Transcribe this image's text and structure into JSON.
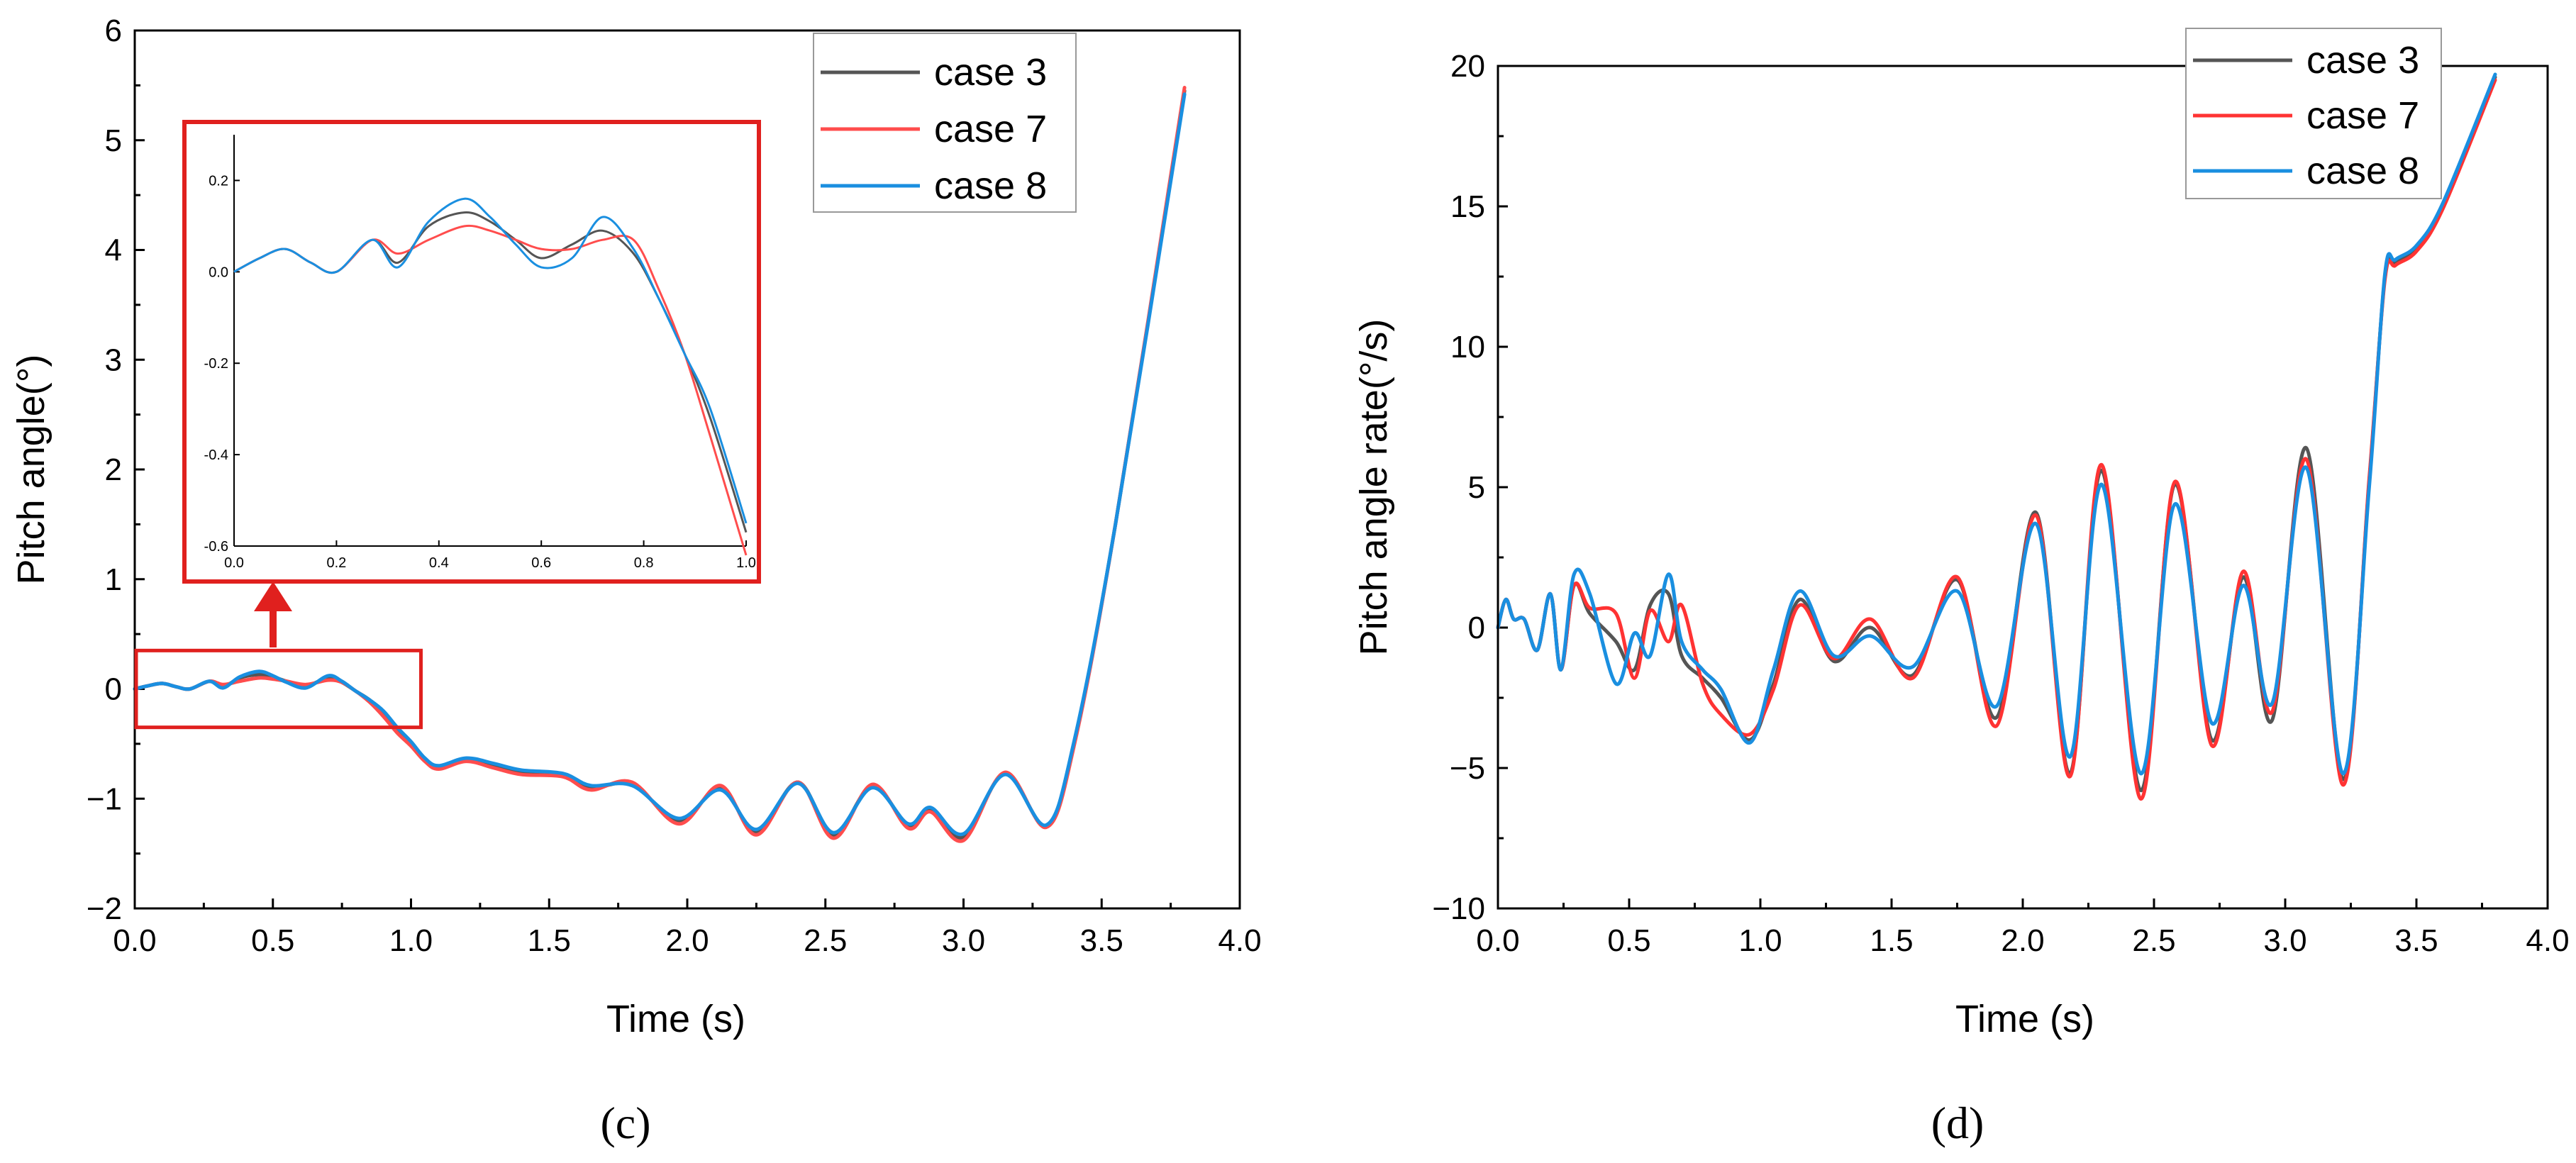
{
  "chart_data": [
    {
      "type": "line",
      "panel_label": "(c)",
      "xlabel": "Time (s)",
      "ylabel": "Pitch angle(°)",
      "xlim": [
        0,
        4
      ],
      "ylim": [
        -2,
        6
      ],
      "xticks": [
        0.0,
        0.5,
        1.0,
        1.5,
        2.0,
        2.5,
        3.0,
        3.5,
        4.0
      ],
      "xtick_labels": [
        "0.0",
        "0.5",
        "1.0",
        "1.5",
        "2.0",
        "2.5",
        "3.0",
        "3.5",
        "4.0"
      ],
      "yticks": [
        -2,
        -1,
        0,
        1,
        2,
        3,
        4,
        5,
        6
      ],
      "ytick_labels": [
        "−2",
        "−1",
        "0",
        "1",
        "2",
        "3",
        "4",
        "5",
        "6"
      ],
      "legend": [
        "case 3",
        "case 7",
        "case 8"
      ],
      "legend_position": "top-right",
      "series": [
        {
          "name": "case 3",
          "color": "#555555",
          "x": [
            0,
            0.05,
            0.1,
            0.15,
            0.2,
            0.27,
            0.32,
            0.38,
            0.45,
            0.5,
            0.55,
            0.62,
            0.7,
            0.75,
            0.8,
            0.85,
            0.9,
            0.95,
            1.0,
            1.05,
            1.1,
            1.2,
            1.3,
            1.4,
            1.55,
            1.65,
            1.8,
            1.97,
            2.12,
            2.25,
            2.4,
            2.53,
            2.67,
            2.8,
            2.88,
            3.0,
            3.15,
            3.3,
            3.4,
            3.55,
            3.8
          ],
          "y": [
            0,
            0.03,
            0.05,
            0.02,
            0,
            0.07,
            0.02,
            0.1,
            0.13,
            0.11,
            0.07,
            0.03,
            0.1,
            0.06,
            -0.02,
            -0.1,
            -0.22,
            -0.37,
            -0.5,
            -0.65,
            -0.72,
            -0.65,
            -0.7,
            -0.76,
            -0.78,
            -0.9,
            -0.87,
            -1.2,
            -0.9,
            -1.3,
            -0.85,
            -1.33,
            -0.88,
            -1.25,
            -1.1,
            -1.35,
            -0.77,
            -1.25,
            -0.5,
            1.5,
            5.45
          ]
        },
        {
          "name": "case 7",
          "color": "#ff4d4d",
          "x": [
            0,
            0.05,
            0.1,
            0.15,
            0.2,
            0.27,
            0.32,
            0.38,
            0.45,
            0.5,
            0.55,
            0.62,
            0.7,
            0.75,
            0.8,
            0.85,
            0.9,
            0.95,
            1.0,
            1.05,
            1.1,
            1.2,
            1.3,
            1.4,
            1.55,
            1.65,
            1.8,
            1.97,
            2.12,
            2.25,
            2.4,
            2.53,
            2.67,
            2.8,
            2.88,
            3.0,
            3.15,
            3.3,
            3.4,
            3.55,
            3.8
          ],
          "y": [
            0,
            0.03,
            0.05,
            0.02,
            0,
            0.07,
            0.04,
            0.07,
            0.1,
            0.09,
            0.07,
            0.04,
            0.08,
            0.06,
            -0.02,
            -0.12,
            -0.25,
            -0.4,
            -0.52,
            -0.66,
            -0.73,
            -0.66,
            -0.72,
            -0.78,
            -0.8,
            -0.92,
            -0.85,
            -1.23,
            -0.88,
            -1.33,
            -0.85,
            -1.36,
            -0.87,
            -1.27,
            -1.12,
            -1.38,
            -0.76,
            -1.26,
            -0.52,
            1.5,
            5.48
          ]
        },
        {
          "name": "case 8",
          "color": "#1a8fe0",
          "x": [
            0,
            0.05,
            0.1,
            0.15,
            0.2,
            0.27,
            0.32,
            0.38,
            0.45,
            0.5,
            0.55,
            0.62,
            0.7,
            0.75,
            0.8,
            0.85,
            0.9,
            0.95,
            1.0,
            1.05,
            1.1,
            1.2,
            1.3,
            1.4,
            1.55,
            1.65,
            1.8,
            1.97,
            2.12,
            2.25,
            2.4,
            2.53,
            2.67,
            2.8,
            2.88,
            3.0,
            3.15,
            3.3,
            3.4,
            3.55,
            3.8
          ],
          "y": [
            0,
            0.03,
            0.05,
            0.02,
            0,
            0.07,
            0.01,
            0.11,
            0.16,
            0.12,
            0.06,
            0.01,
            0.12,
            0.07,
            -0.02,
            -0.1,
            -0.2,
            -0.35,
            -0.48,
            -0.63,
            -0.7,
            -0.63,
            -0.68,
            -0.74,
            -0.77,
            -0.88,
            -0.88,
            -1.18,
            -0.92,
            -1.28,
            -0.86,
            -1.31,
            -0.9,
            -1.23,
            -1.08,
            -1.32,
            -0.78,
            -1.24,
            -0.48,
            1.5,
            5.42
          ]
        }
      ],
      "inset": {
        "xlim": [
          0,
          1
        ],
        "ylim": [
          -0.6,
          0.3
        ],
        "xticks": [
          0.0,
          0.2,
          0.4,
          0.6,
          0.8,
          1.0
        ],
        "xtick_labels": [
          "0.0",
          "0.2",
          "0.4",
          "0.6",
          "0.8",
          "1.0"
        ],
        "yticks": [
          -0.6,
          -0.4,
          -0.2,
          0.0,
          0.2
        ],
        "ytick_labels": [
          "-0.6",
          "-0.4",
          "-0.2",
          "0.0",
          "0.2"
        ],
        "zoom_region": {
          "x": [
            0,
            1
          ],
          "y": [
            -0.35,
            0.35
          ]
        },
        "series": [
          {
            "name": "case 3",
            "color": "#555555",
            "x": [
              0,
              0.05,
              0.1,
              0.15,
              0.2,
              0.27,
              0.32,
              0.38,
              0.45,
              0.5,
              0.55,
              0.6,
              0.66,
              0.72,
              0.78,
              0.83,
              0.88,
              0.93,
              1.0
            ],
            "y": [
              0,
              0.03,
              0.05,
              0.02,
              0,
              0.07,
              0.02,
              0.1,
              0.13,
              0.11,
              0.07,
              0.03,
              0.06,
              0.09,
              0.04,
              -0.06,
              -0.18,
              -0.32,
              -0.57
            ]
          },
          {
            "name": "case 7",
            "color": "#ff4d4d",
            "x": [
              0,
              0.05,
              0.1,
              0.15,
              0.2,
              0.27,
              0.32,
              0.38,
              0.45,
              0.5,
              0.55,
              0.6,
              0.66,
              0.72,
              0.78,
              0.83,
              0.88,
              0.93,
              1.0
            ],
            "y": [
              0,
              0.03,
              0.05,
              0.02,
              0,
              0.07,
              0.04,
              0.07,
              0.1,
              0.09,
              0.07,
              0.05,
              0.05,
              0.07,
              0.07,
              -0.04,
              -0.18,
              -0.36,
              -0.62
            ]
          },
          {
            "name": "case 8",
            "color": "#1a8fe0",
            "x": [
              0,
              0.05,
              0.1,
              0.15,
              0.2,
              0.27,
              0.32,
              0.38,
              0.45,
              0.5,
              0.55,
              0.6,
              0.66,
              0.72,
              0.78,
              0.83,
              0.88,
              0.93,
              1.0
            ],
            "y": [
              0,
              0.03,
              0.05,
              0.02,
              0,
              0.07,
              0.01,
              0.11,
              0.16,
              0.12,
              0.06,
              0.01,
              0.03,
              0.12,
              0.05,
              -0.06,
              -0.18,
              -0.3,
              -0.55
            ]
          }
        ]
      }
    },
    {
      "type": "line",
      "panel_label": "(d)",
      "xlabel": "Time (s)",
      "ylabel": "Pitch angle rate(°/s)",
      "xlim": [
        0,
        4
      ],
      "ylim": [
        -10,
        20
      ],
      "xticks": [
        0.0,
        0.5,
        1.0,
        1.5,
        2.0,
        2.5,
        3.0,
        3.5,
        4.0
      ],
      "xtick_labels": [
        "0.0",
        "0.5",
        "1.0",
        "1.5",
        "2.0",
        "2.5",
        "3.0",
        "3.5",
        "4.0"
      ],
      "yticks": [
        -10,
        -5,
        0,
        5,
        10,
        15,
        20
      ],
      "ytick_labels": [
        "−10",
        "−5",
        "0",
        "5",
        "10",
        "15",
        "20"
      ],
      "legend": [
        "case 3",
        "case 7",
        "case 8"
      ],
      "legend_position": "top-right",
      "series": [
        {
          "name": "case 3",
          "color": "#555555",
          "x": [
            0,
            0.03,
            0.06,
            0.1,
            0.15,
            0.2,
            0.24,
            0.29,
            0.35,
            0.45,
            0.52,
            0.58,
            0.65,
            0.7,
            0.78,
            0.85,
            0.96,
            1.05,
            1.15,
            1.28,
            1.42,
            1.58,
            1.75,
            1.9,
            2.05,
            2.18,
            2.3,
            2.45,
            2.58,
            2.72,
            2.84,
            2.95,
            3.08,
            3.22,
            3.32,
            3.38,
            3.42,
            3.5,
            3.6,
            3.8
          ],
          "y": [
            0,
            1,
            0.3,
            0.3,
            -0.8,
            1.2,
            -1.5,
            1.5,
            0.5,
            -0.5,
            -1.5,
            0.8,
            1.2,
            -1,
            -1.8,
            -2.5,
            -4,
            -2,
            1,
            -1.2,
            0,
            -1.7,
            1.7,
            -3.2,
            4.1,
            -5.2,
            5.6,
            -5.8,
            5.1,
            -4,
            1.8,
            -3.3,
            6.4,
            -5.4,
            5.2,
            12.5,
            13,
            13.5,
            15,
            19.6
          ]
        },
        {
          "name": "case 7",
          "color": "#ff3333",
          "x": [
            0,
            0.03,
            0.06,
            0.1,
            0.15,
            0.2,
            0.24,
            0.29,
            0.35,
            0.45,
            0.52,
            0.58,
            0.65,
            0.7,
            0.78,
            0.85,
            0.96,
            1.05,
            1.15,
            1.28,
            1.42,
            1.58,
            1.75,
            1.9,
            2.05,
            2.18,
            2.3,
            2.45,
            2.58,
            2.72,
            2.84,
            2.95,
            3.08,
            3.22,
            3.32,
            3.38,
            3.42,
            3.5,
            3.6,
            3.8
          ],
          "y": [
            0,
            1,
            0.3,
            0.3,
            -0.8,
            1.2,
            -1.5,
            1.5,
            0.7,
            0.5,
            -1.8,
            0.6,
            -0.5,
            0.8,
            -2,
            -3.1,
            -3.8,
            -2.2,
            0.8,
            -1.1,
            0.3,
            -1.8,
            1.8,
            -3.5,
            4,
            -5.3,
            5.8,
            -6.1,
            5.2,
            -4.2,
            2,
            -3,
            6,
            -5.6,
            5.3,
            12.4,
            12.9,
            13.4,
            14.9,
            19.5
          ]
        },
        {
          "name": "case 8",
          "color": "#1a8fe0",
          "x": [
            0,
            0.03,
            0.06,
            0.1,
            0.15,
            0.2,
            0.24,
            0.29,
            0.35,
            0.45,
            0.52,
            0.58,
            0.65,
            0.7,
            0.78,
            0.85,
            0.96,
            1.05,
            1.15,
            1.28,
            1.42,
            1.58,
            1.75,
            1.9,
            2.05,
            2.18,
            2.3,
            2.45,
            2.58,
            2.72,
            2.84,
            2.95,
            3.08,
            3.22,
            3.32,
            3.38,
            3.42,
            3.5,
            3.6,
            3.8
          ],
          "y": [
            0,
            1,
            0.3,
            0.3,
            -0.8,
            1.2,
            -1.5,
            1.9,
            1.2,
            -2,
            -0.2,
            -1,
            1.9,
            -0.5,
            -1.5,
            -2.2,
            -4.1,
            -1.5,
            1.3,
            -1,
            -0.3,
            -1.4,
            1.3,
            -2.8,
            3.7,
            -4.6,
            5.1,
            -5.2,
            4.4,
            -3.4,
            1.5,
            -2.7,
            5.7,
            -5.2,
            5,
            12.6,
            13.1,
            13.6,
            15.1,
            19.7
          ]
        }
      ]
    }
  ]
}
